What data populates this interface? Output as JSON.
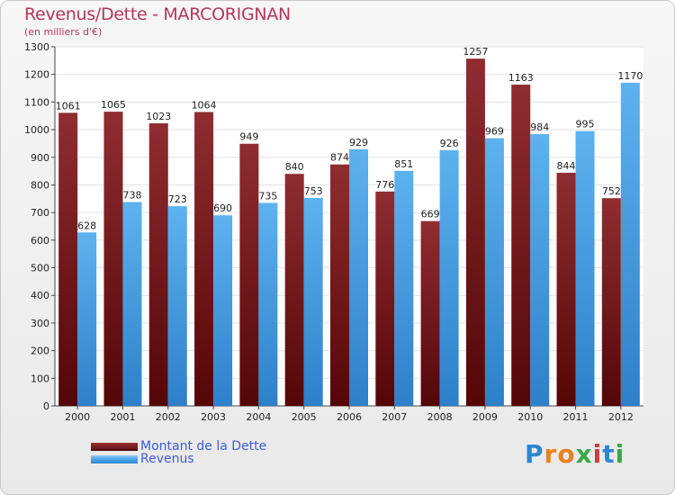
{
  "header": {
    "title": "Revenus/Dette - MARCORIGNAN",
    "subtitle": "(en milliers d'€)"
  },
  "colors": {
    "dette": "#7a1f22",
    "revenus": "#4aa3e6",
    "title": "#b5365a"
  },
  "chart_data": {
    "type": "bar",
    "categories": [
      "2000",
      "2001",
      "2002",
      "2003",
      "2004",
      "2005",
      "2006",
      "2007",
      "2008",
      "2009",
      "2010",
      "2011",
      "2012"
    ],
    "series": [
      {
        "name": "Montant de la Dette",
        "values": [
          1061,
          1065,
          1023,
          1064,
          949,
          840,
          874,
          776,
          669,
          1257,
          1163,
          844,
          752
        ]
      },
      {
        "name": "Revenus",
        "values": [
          628,
          738,
          723,
          690,
          735,
          753,
          929,
          851,
          926,
          969,
          984,
          995,
          1170
        ]
      }
    ],
    "ylim": [
      0,
      1300
    ],
    "yticks": [
      0,
      100,
      200,
      300,
      400,
      500,
      600,
      700,
      800,
      900,
      1000,
      1100,
      1200,
      1300
    ],
    "grid": true,
    "legend": "bottom-left"
  },
  "legend": {
    "items": [
      {
        "label": "Montant de la Dette"
      },
      {
        "label": "Revenus"
      }
    ]
  },
  "logo": {
    "text": "Proxiti"
  }
}
